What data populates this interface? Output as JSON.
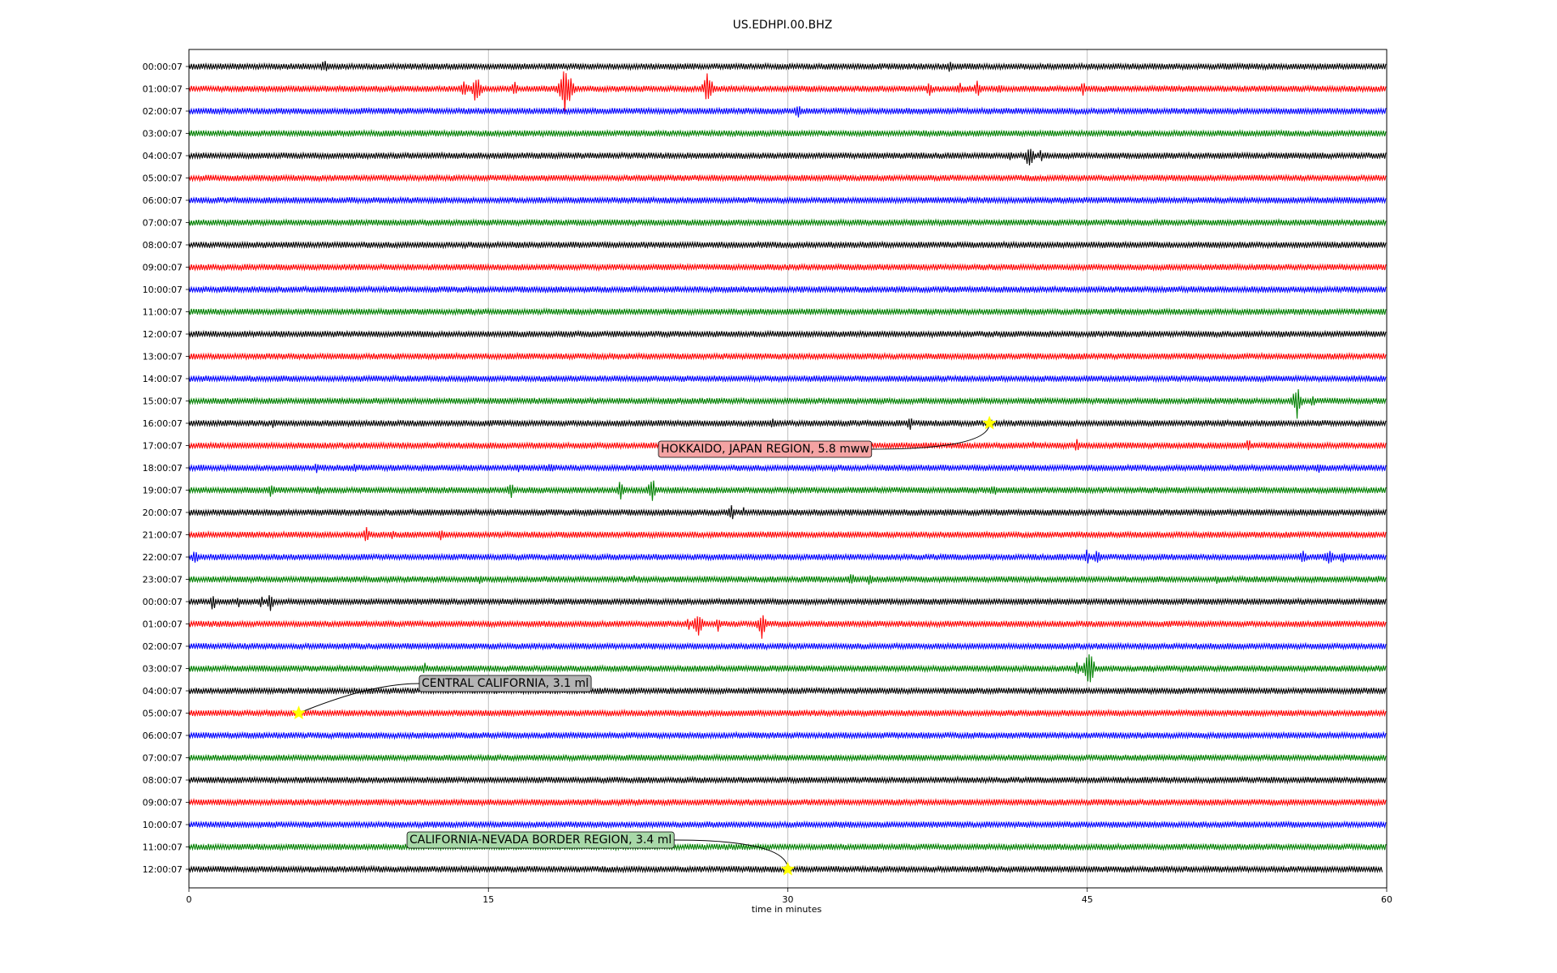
{
  "chart_data": {
    "type": "line",
    "title": "US.EDHPI.00.BHZ",
    "xlabel": "time in minutes",
    "ylabel": "",
    "xlim": [
      0,
      60
    ],
    "x_ticks": [
      0,
      15,
      30,
      45,
      60
    ],
    "vertical_gridlines": [
      15,
      30,
      45
    ],
    "row_labels": [
      "00:00:07",
      "01:00:07",
      "02:00:07",
      "03:00:07",
      "04:00:07",
      "05:00:07",
      "06:00:07",
      "07:00:07",
      "08:00:07",
      "09:00:07",
      "10:00:07",
      "11:00:07",
      "12:00:07",
      "13:00:07",
      "14:00:07",
      "15:00:07",
      "16:00:07",
      "17:00:07",
      "18:00:07",
      "19:00:07",
      "20:00:07",
      "21:00:07",
      "22:00:07",
      "23:00:07",
      "00:00:07",
      "01:00:07",
      "02:00:07",
      "03:00:07",
      "04:00:07",
      "05:00:07",
      "06:00:07",
      "07:00:07",
      "08:00:07",
      "09:00:07",
      "10:00:07",
      "11:00:07",
      "12:00:07"
    ],
    "trace_colors": [
      "#000000",
      "#ff0000",
      "#0000ff",
      "#008000"
    ],
    "last_row_end_minute": 59.8,
    "events": [
      {
        "label": "HOKKAIDO, JAPAN REGION, 5.8 mww",
        "row": 16,
        "minute": 40.1,
        "box_color": "#f4a3a3"
      },
      {
        "label": "CENTRAL CALIFORNIA, 3.1 ml",
        "row": 29,
        "minute": 5.5,
        "box_color": "#b3b3b3"
      },
      {
        "label": "CALIFORNIA-NEVADA BORDER REGION, 3.4 ml",
        "row": 36,
        "minute": 30.0,
        "box_color": "#a8d8a8"
      }
    ],
    "marker_color": "#ffff00",
    "signals": [
      {
        "row": 0,
        "minute": 6.8,
        "amp": 10
      },
      {
        "row": 0,
        "minute": 38.1,
        "amp": 8
      },
      {
        "row": 1,
        "minute": 13.8,
        "amp": 14
      },
      {
        "row": 1,
        "minute": 14.4,
        "amp": 22
      },
      {
        "row": 1,
        "minute": 16.3,
        "amp": 10
      },
      {
        "row": 1,
        "minute": 18.8,
        "amp": 40
      },
      {
        "row": 1,
        "minute": 19.1,
        "amp": 18
      },
      {
        "row": 1,
        "minute": 26.0,
        "amp": 24
      },
      {
        "row": 1,
        "minute": 37.1,
        "amp": 10
      },
      {
        "row": 1,
        "minute": 38.6,
        "amp": 9
      },
      {
        "row": 1,
        "minute": 39.5,
        "amp": 14
      },
      {
        "row": 1,
        "minute": 40.6,
        "amp": 8
      },
      {
        "row": 1,
        "minute": 44.8,
        "amp": 10
      },
      {
        "row": 2,
        "minute": 30.5,
        "amp": 11
      },
      {
        "row": 4,
        "minute": 41.1,
        "amp": 8
      },
      {
        "row": 4,
        "minute": 42.1,
        "amp": 18
      },
      {
        "row": 4,
        "minute": 42.7,
        "amp": 9
      },
      {
        "row": 15,
        "minute": 55.5,
        "amp": 24
      },
      {
        "row": 15,
        "minute": 56.3,
        "amp": 8
      },
      {
        "row": 16,
        "minute": 4.2,
        "amp": 9
      },
      {
        "row": 16,
        "minute": 29.2,
        "amp": 8
      },
      {
        "row": 16,
        "minute": 36.1,
        "amp": 10
      },
      {
        "row": 16,
        "minute": 46.1,
        "amp": 6
      },
      {
        "row": 17,
        "minute": 42.3,
        "amp": 6
      },
      {
        "row": 17,
        "minute": 44.5,
        "amp": 9
      },
      {
        "row": 17,
        "minute": 53.1,
        "amp": 10
      },
      {
        "row": 18,
        "minute": 6.4,
        "amp": 8
      },
      {
        "row": 18,
        "minute": 8.3,
        "amp": 8
      },
      {
        "row": 18,
        "minute": 16.5,
        "amp": 6
      },
      {
        "row": 18,
        "minute": 18.1,
        "amp": 8
      },
      {
        "row": 18,
        "minute": 56.6,
        "amp": 8
      },
      {
        "row": 19,
        "minute": 4.1,
        "amp": 10
      },
      {
        "row": 19,
        "minute": 6.5,
        "amp": 8
      },
      {
        "row": 19,
        "minute": 16.1,
        "amp": 12
      },
      {
        "row": 19,
        "minute": 21.6,
        "amp": 14
      },
      {
        "row": 19,
        "minute": 23.2,
        "amp": 18
      },
      {
        "row": 19,
        "minute": 40.3,
        "amp": 9
      },
      {
        "row": 20,
        "minute": 3.2,
        "amp": 7
      },
      {
        "row": 20,
        "minute": 6.3,
        "amp": 5
      },
      {
        "row": 20,
        "minute": 27.2,
        "amp": 12
      },
      {
        "row": 20,
        "minute": 27.8,
        "amp": 7
      },
      {
        "row": 21,
        "minute": 8.9,
        "amp": 12
      },
      {
        "row": 21,
        "minute": 10.2,
        "amp": 6
      },
      {
        "row": 21,
        "minute": 12.6,
        "amp": 8
      },
      {
        "row": 22,
        "minute": 0.3,
        "amp": 10
      },
      {
        "row": 22,
        "minute": 45.0,
        "amp": 12
      },
      {
        "row": 22,
        "minute": 45.5,
        "amp": 10
      },
      {
        "row": 22,
        "minute": 55.8,
        "amp": 14
      },
      {
        "row": 22,
        "minute": 57.1,
        "amp": 14
      },
      {
        "row": 22,
        "minute": 57.8,
        "amp": 9
      },
      {
        "row": 23,
        "minute": 14.6,
        "amp": 8
      },
      {
        "row": 23,
        "minute": 22.3,
        "amp": 6
      },
      {
        "row": 23,
        "minute": 33.2,
        "amp": 9
      },
      {
        "row": 23,
        "minute": 34.1,
        "amp": 8
      },
      {
        "row": 23,
        "minute": 51.5,
        "amp": 7
      },
      {
        "row": 23,
        "minute": 59.6,
        "amp": 6
      },
      {
        "row": 24,
        "minute": 1.2,
        "amp": 12
      },
      {
        "row": 24,
        "minute": 2.5,
        "amp": 7
      },
      {
        "row": 24,
        "minute": 3.6,
        "amp": 8
      },
      {
        "row": 24,
        "minute": 4.1,
        "amp": 14
      },
      {
        "row": 25,
        "minute": 25.0,
        "amp": 9
      },
      {
        "row": 25,
        "minute": 25.5,
        "amp": 18
      },
      {
        "row": 25,
        "minute": 26.5,
        "amp": 10
      },
      {
        "row": 25,
        "minute": 28.7,
        "amp": 20
      },
      {
        "row": 26,
        "minute": 22.4,
        "amp": 5
      },
      {
        "row": 27,
        "minute": 11.8,
        "amp": 8
      },
      {
        "row": 27,
        "minute": 44.5,
        "amp": 10
      },
      {
        "row": 27,
        "minute": 45.1,
        "amp": 28
      }
    ]
  }
}
